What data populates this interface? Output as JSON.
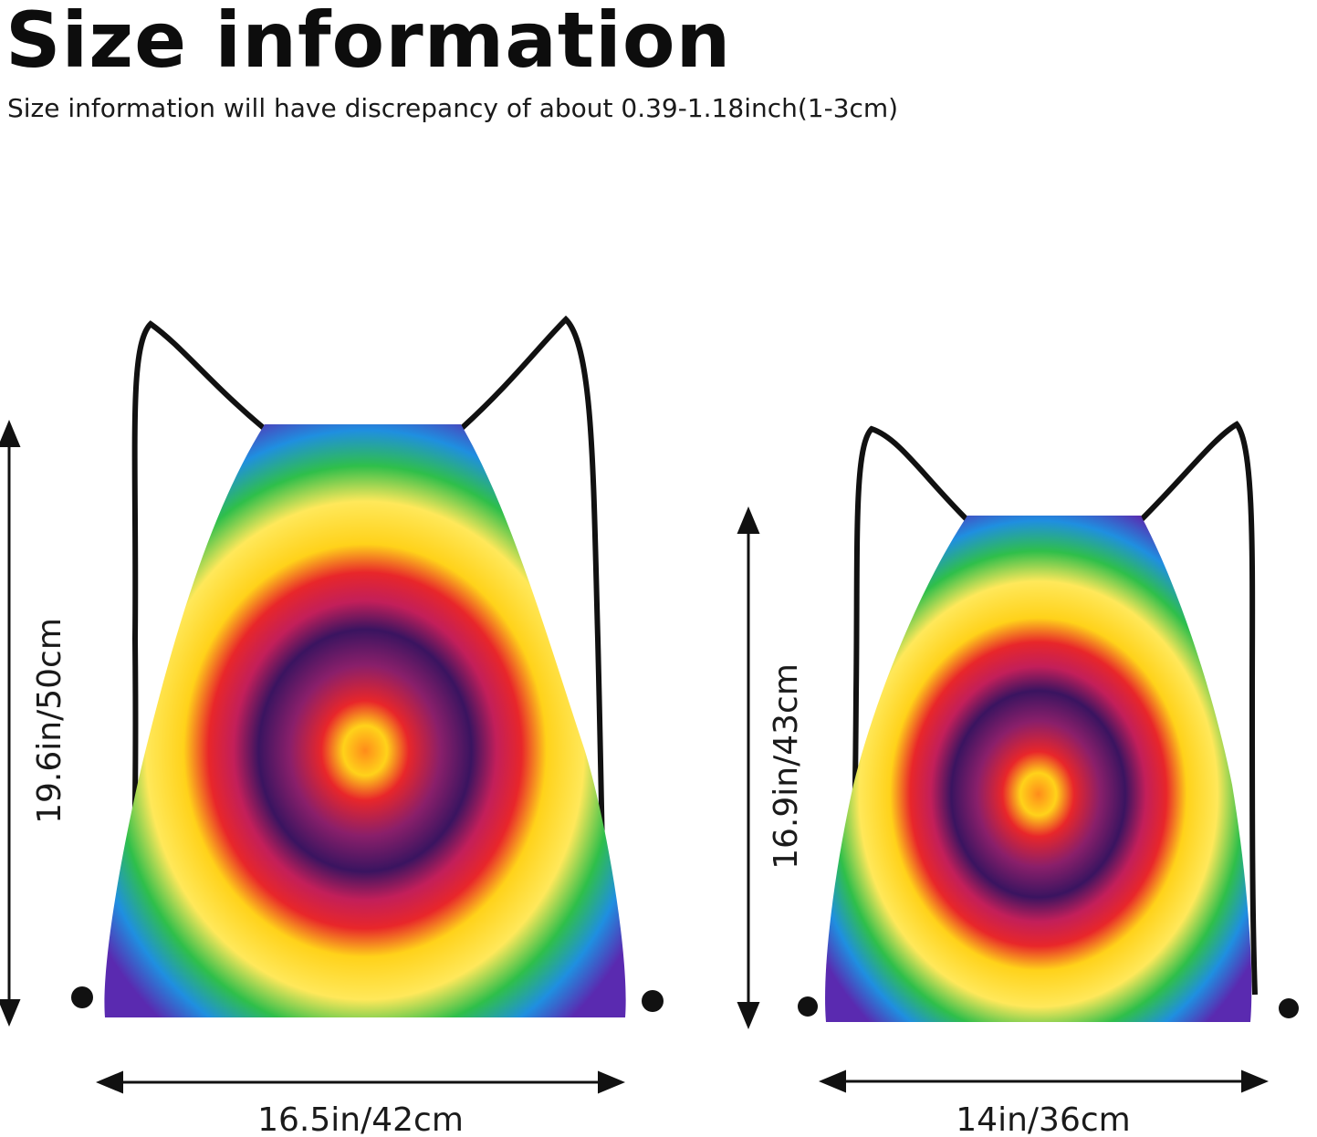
{
  "header": {
    "title": "Size information",
    "subtitle": "Size information will have discrepancy of about 0.39-1.18inch(1-3cm)"
  },
  "bags": {
    "large": {
      "height_label": "19.6in/50cm",
      "width_label": "16.5in/42cm"
    },
    "small": {
      "height_label": "16.9in/43cm",
      "width_label": "14in/36cm"
    }
  },
  "colors": {
    "cord": "#111111",
    "dye": [
      "#ffd21a",
      "#ff9a1a",
      "#e8262a",
      "#7a1a5a",
      "#3a1460",
      "#1f8fe0",
      "#2fbf4a"
    ]
  }
}
